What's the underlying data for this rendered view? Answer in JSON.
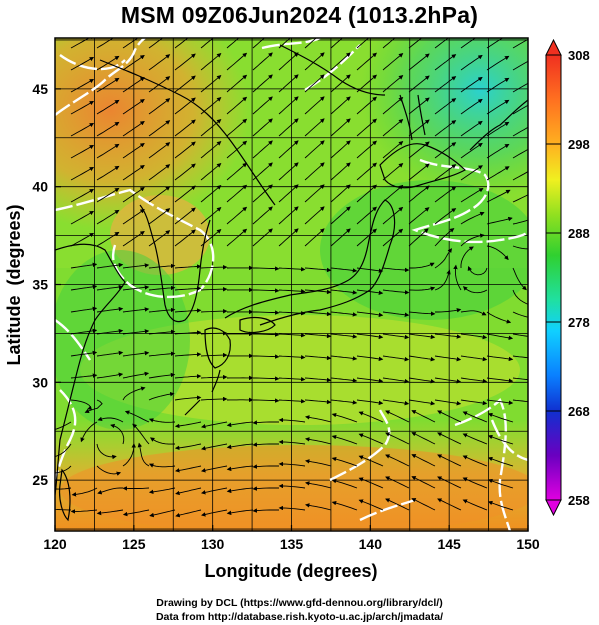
{
  "title": "MSM 09Z06Jun2024 (1013.2hPa)",
  "x_axis": {
    "label": "Longitude (degrees)",
    "ticks": [
      "120",
      "125",
      "130",
      "135",
      "140",
      "145",
      "150"
    ],
    "range": [
      120,
      150
    ]
  },
  "y_axis": {
    "label": "Latitude  (degrees)",
    "ticks": [
      "25",
      "30",
      "35",
      "40",
      "45"
    ],
    "range": [
      22.4,
      47.6
    ]
  },
  "colorbar": {
    "ticks": [
      "308",
      "298",
      "288",
      "278",
      "268",
      "258"
    ],
    "range": [
      258,
      308
    ],
    "colors": [
      "#e000e0",
      "#6a00c0",
      "#1030d0",
      "#0a80ff",
      "#10d0ff",
      "#20e0a0",
      "#30d030",
      "#90e020",
      "#f0f020",
      "#ffb020",
      "#ff7020",
      "#f03020"
    ]
  },
  "credits": {
    "line1": "Drawing by DCL (https://www.gfd-dennou.org/library/dcl/)",
    "line2": "Data from http://database.rish.kyoto-u.ac.jp/arch/jmadata/"
  },
  "colors": {
    "warm": "#f0a030",
    "mid": "#e8e030",
    "cool": "#40d040",
    "contour": "#ffffff",
    "coast": "#000000"
  }
}
